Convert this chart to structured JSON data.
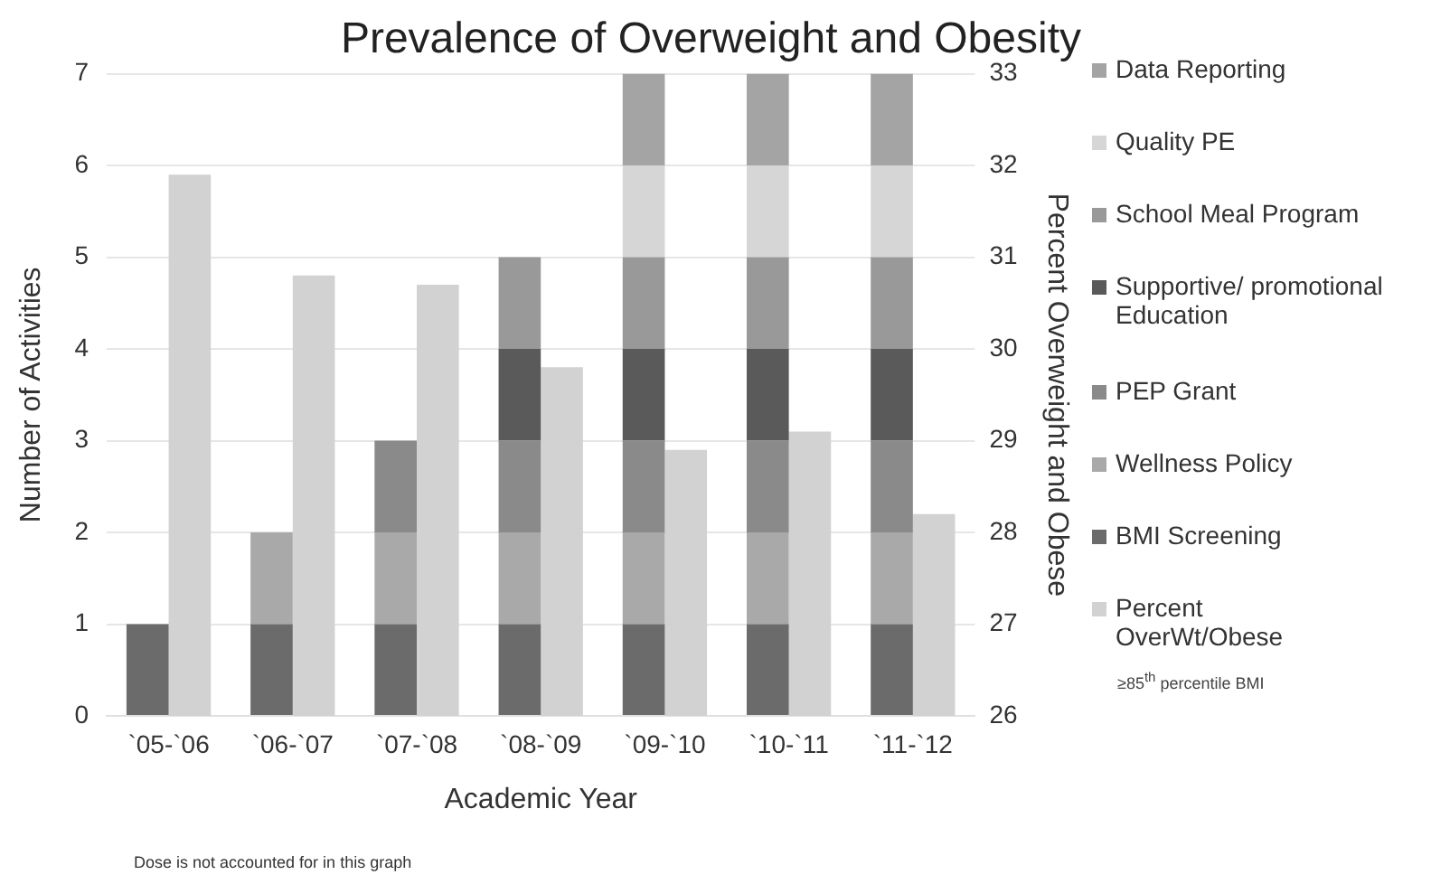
{
  "chart_data": {
    "type": "bar",
    "title": "Prevalence of Overweight and Obesity",
    "xlabel": "Academic Year",
    "ylabel": "Number of Activities",
    "y2label": "Percent Overweight and Obese",
    "categories": [
      "`05-`06",
      "`06-`07",
      "`07-`08",
      "`08-`09",
      "`09-`10",
      "`10-`11",
      "`11-`12"
    ],
    "stacked": true,
    "series": [
      {
        "name": "BMI Screening",
        "color": "#6b6b6b",
        "values": [
          1,
          1,
          1,
          1,
          1,
          1,
          1
        ]
      },
      {
        "name": "Wellness Policy",
        "color": "#a9a9a9",
        "values": [
          0,
          1,
          1,
          1,
          1,
          1,
          1
        ]
      },
      {
        "name": "PEP Grant",
        "color": "#8a8a8a",
        "values": [
          0,
          0,
          1,
          1,
          1,
          1,
          1
        ]
      },
      {
        "name": "Supportive/ promotional Education",
        "color": "#5a5a5a",
        "values": [
          0,
          0,
          0,
          1,
          1,
          1,
          1
        ]
      },
      {
        "name": "School Meal Program",
        "color": "#999999",
        "values": [
          0,
          0,
          0,
          1,
          1,
          1,
          1
        ]
      },
      {
        "name": "Quality PE",
        "color": "#d6d6d6",
        "values": [
          0,
          0,
          0,
          0,
          1,
          1,
          1
        ]
      },
      {
        "name": "Data Reporting",
        "color": "#a4a4a4",
        "values": [
          0,
          0,
          0,
          0,
          1,
          1,
          1
        ]
      },
      {
        "name": "Percent OverWt/Obese",
        "color": "#d2d2d2",
        "axis": "y2",
        "values": [
          31.9,
          30.8,
          30.7,
          29.8,
          28.9,
          29.1,
          28.2
        ]
      }
    ],
    "ylim": [
      0,
      7
    ],
    "yticks": [
      0,
      1,
      2,
      3,
      4,
      5,
      6,
      7
    ],
    "y2lim": [
      26,
      33
    ],
    "y2ticks": [
      26,
      27,
      28,
      29,
      30,
      31,
      32,
      33
    ],
    "grid": "y",
    "legend": "right",
    "annotations": [
      "≥85$^{th}$ percentile BMI",
      "Dose is not accounted for in this graph"
    ]
  }
}
